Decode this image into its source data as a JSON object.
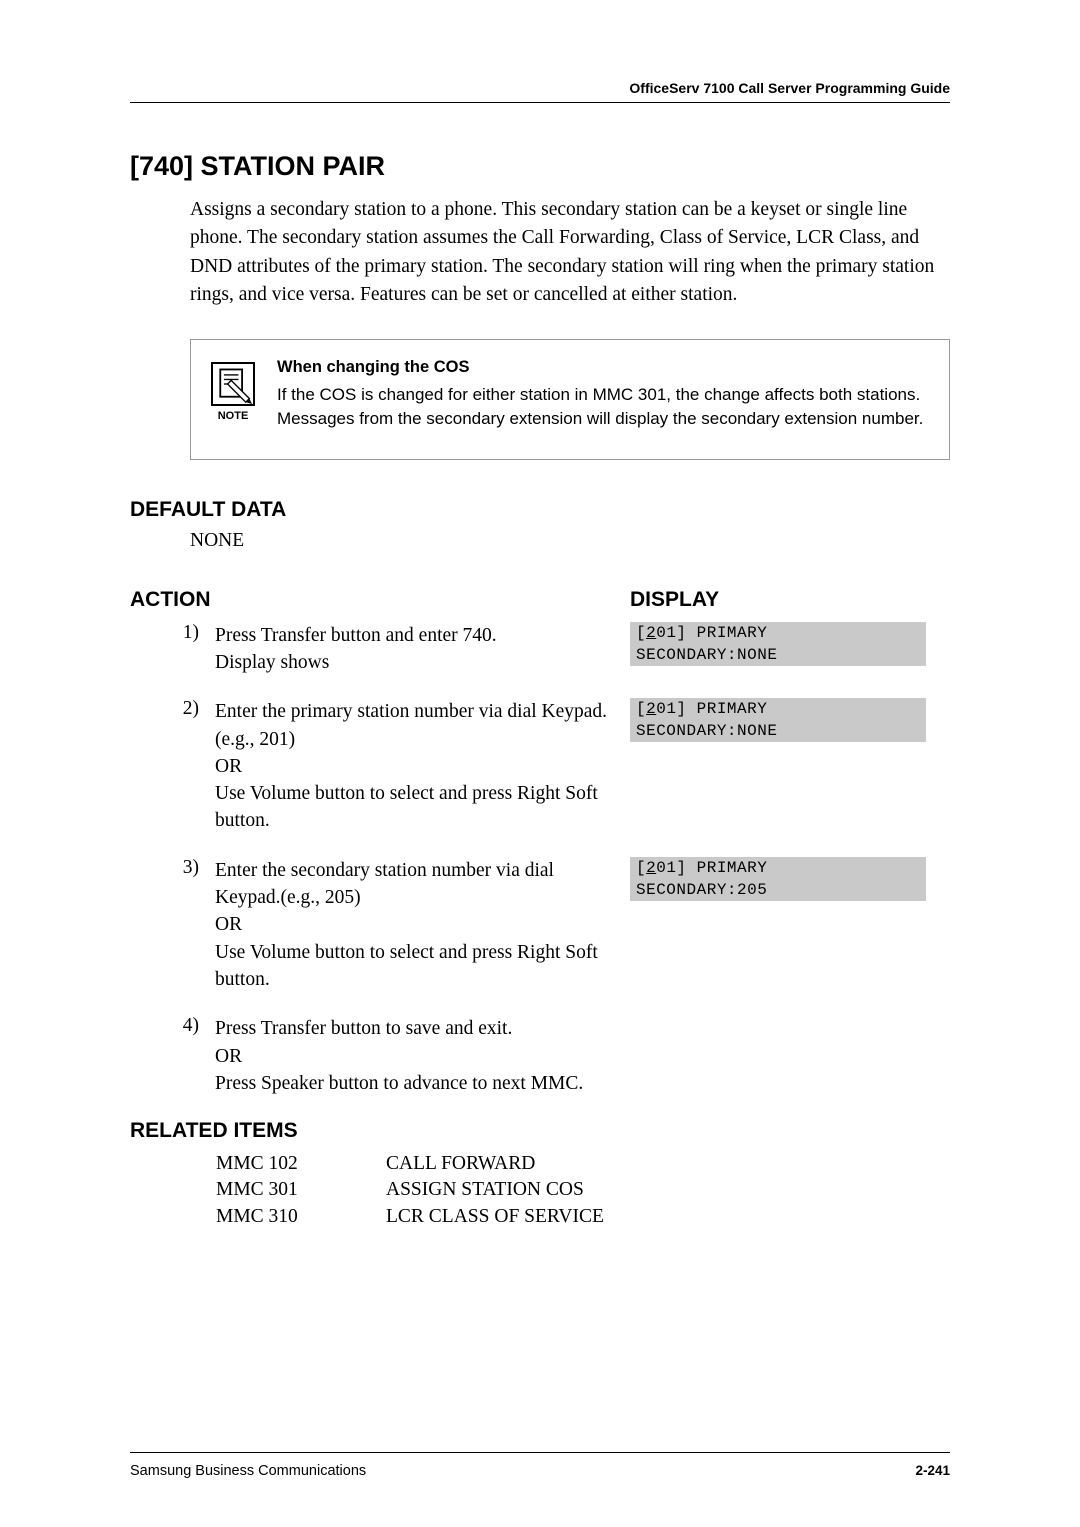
{
  "header": {
    "doc_title": "OfficeServ 7100 Call Server Programming Guide"
  },
  "title": "[740] STATION PAIR",
  "intro": "Assigns a secondary station to a phone. This secondary station can be a keyset or single line phone. The secondary station assumes the Call Forwarding, Class of Service, LCR Class, and DND attributes of the primary station. The secondary station will ring when the primary station rings, and vice versa. Features can be set or cancelled at either station.",
  "note": {
    "icon_label": "NOTE",
    "title": "When changing the COS",
    "body": "If the COS is changed for either station in MMC 301, the change affects both stations. Messages from the secondary extension will display the secondary extension number."
  },
  "default_data": {
    "heading": "DEFAULT DATA",
    "value": "NONE"
  },
  "columns": {
    "action": "ACTION",
    "display": "DISPLAY"
  },
  "steps": [
    {
      "num": "1)",
      "text": "Press Transfer button and enter 740.\nDisplay shows",
      "display": {
        "line1_pre": "[",
        "line1_u": "2",
        "line1_post": "01] PRIMARY",
        "line2": "SECONDARY:NONE"
      }
    },
    {
      "num": "2)",
      "text": "Enter the primary station number via dial Keypad.(e.g., 201)\nOR\nUse Volume button to select and press Right Soft button.",
      "display": {
        "line1_pre": "[",
        "line1_u": "2",
        "line1_post": "01] PRIMARY",
        "line2": "SECONDARY:NONE"
      }
    },
    {
      "num": "3)",
      "text": "Enter the secondary station number via dial Keypad.(e.g., 205)\nOR\nUse Volume button to select and press Right Soft button.",
      "display": {
        "line1_pre": "[",
        "line1_u": "2",
        "line1_post": "01] PRIMARY",
        "line2": "SECONDARY:205"
      }
    },
    {
      "num": "4)",
      "text": "Press Transfer button to save and exit.\nOR\nPress Speaker button to advance to next MMC.",
      "display": null
    }
  ],
  "related": {
    "heading": "RELATED ITEMS",
    "items": [
      {
        "code": "MMC 102",
        "name": "CALL FORWARD"
      },
      {
        "code": "MMC 301",
        "name": "ASSIGN STATION COS"
      },
      {
        "code": "MMC 310",
        "name": "LCR CLASS OF SERVICE"
      }
    ]
  },
  "footer": {
    "left": "Samsung Business Communications",
    "right": "2-241"
  },
  "colors": {
    "display_bg": "#c9c9c9",
    "text": "#000000",
    "rule": "#000000",
    "note_border": "#999999"
  }
}
